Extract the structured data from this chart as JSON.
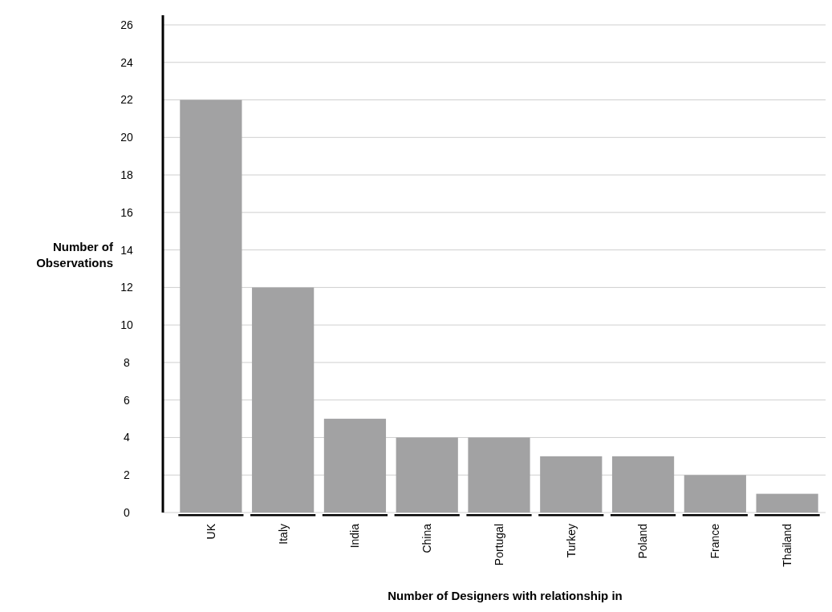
{
  "chart_data": {
    "type": "bar",
    "xlabel": "Number of Designers with relationship in",
    "ylabel": "Number of\nObservations",
    "categories": [
      "UK",
      "Italy",
      "India",
      "China",
      "Portugal",
      "Turkey",
      "Poland",
      "France",
      "Thailand"
    ],
    "values": [
      22,
      12,
      5,
      4,
      4,
      3,
      3,
      2,
      1
    ],
    "color": "#a2a2a3",
    "ylim": [
      0,
      26
    ],
    "yticks": [
      0,
      2,
      4,
      6,
      8,
      10,
      12,
      14,
      16,
      18,
      20,
      22,
      24,
      26
    ],
    "grid": "y"
  }
}
